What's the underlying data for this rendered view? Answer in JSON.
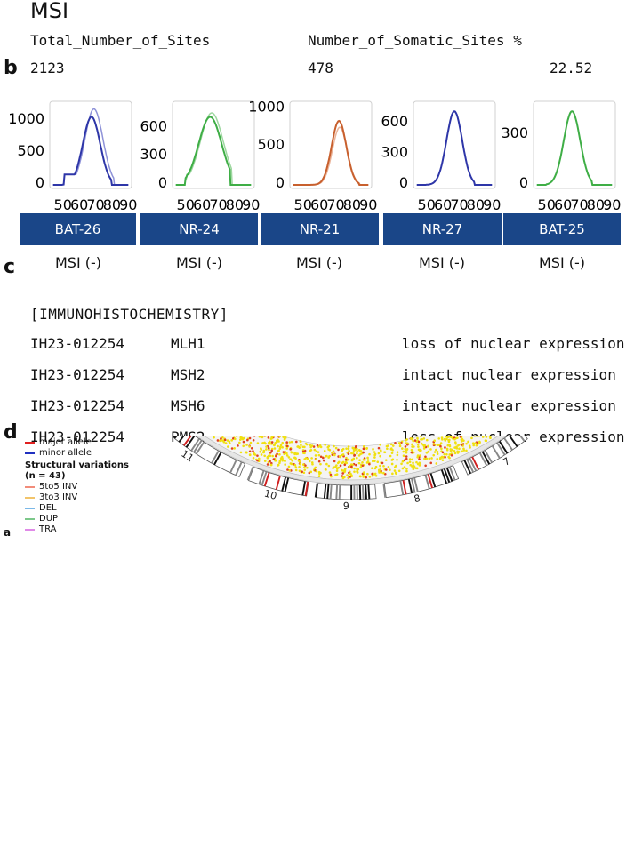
{
  "panel_labels": {
    "b": "b",
    "c": "c",
    "d": "d",
    "a": "a"
  },
  "msi": {
    "title": "MSI",
    "headers": {
      "total": "Total_Number_of_Sites",
      "somatic": "Number_of_Somatic_Sites %"
    },
    "values": {
      "total": "2123",
      "somatic": "478",
      "percent": "22.52"
    }
  },
  "markers": [
    {
      "name": "BAT-26",
      "status": "MSI (-)",
      "color": "#2e36a8",
      "light": "#8e92d8",
      "y_ticks": [
        "1000",
        "500",
        "0"
      ],
      "x_ticks": [
        "50",
        "60",
        "70",
        "80",
        "90"
      ]
    },
    {
      "name": "NR-24",
      "status": "MSI (-)",
      "color": "#3fae46",
      "light": "#9ed7a0",
      "y_ticks": [
        "600",
        "300",
        "0"
      ],
      "x_ticks": [
        "50",
        "60",
        "70",
        "80",
        "90"
      ]
    },
    {
      "name": "NR-21",
      "status": "MSI (-)",
      "color": "#c8602e",
      "light": "#eab49a",
      "y_ticks": [
        "1000",
        "500",
        "0"
      ],
      "x_ticks": [
        "50",
        "60",
        "70",
        "80",
        "90"
      ]
    },
    {
      "name": "NR-27",
      "status": "MSI (-)",
      "color": "#2e36a8",
      "light": "#8e92d8",
      "y_ticks": [
        "600",
        "300",
        "0"
      ],
      "x_ticks": [
        "50",
        "60",
        "70",
        "80",
        "90"
      ]
    },
    {
      "name": "BAT-25",
      "status": "MSI (-)",
      "color": "#3fae46",
      "light": "#9ed7a0",
      "y_ticks": [
        "300",
        "0"
      ],
      "x_ticks": [
        "50",
        "60",
        "70",
        "80",
        "90"
      ]
    }
  ],
  "ihc": {
    "title": "[IMMUNOHISTOCHEMISTRY]",
    "rows": [
      {
        "id": "IH23-012254",
        "gene": "MLH1",
        "result": "loss of nuclear expression"
      },
      {
        "id": "IH23-012254",
        "gene": "MSH2",
        "result": "intact nuclear expression"
      },
      {
        "id": "IH23-012254",
        "gene": "MSH6",
        "result": "intact nuclear expression"
      },
      {
        "id": "IH23-012254",
        "gene": "PMS2",
        "result": "loss of nuclear expression"
      }
    ]
  },
  "circos": {
    "legend": {
      "major_allele": "major allele",
      "minor_allele": "minor allele",
      "sv_title": "Structural variations",
      "sv_count": "(n = 43)",
      "sv_types": [
        {
          "label": "5to5 INV",
          "color": "#f28c7a"
        },
        {
          "label": "3to3 INV",
          "color": "#f2c46a"
        },
        {
          "label": "DEL",
          "color": "#7ab8e8"
        },
        {
          "label": "DUP",
          "color": "#7cc88a"
        },
        {
          "label": "TRA",
          "color": "#e08ae8"
        }
      ],
      "major_color": "#e02020",
      "minor_color": "#2030c0"
    },
    "chromosome_labels": [
      "11",
      "10",
      "9",
      "8",
      "7"
    ]
  }
}
